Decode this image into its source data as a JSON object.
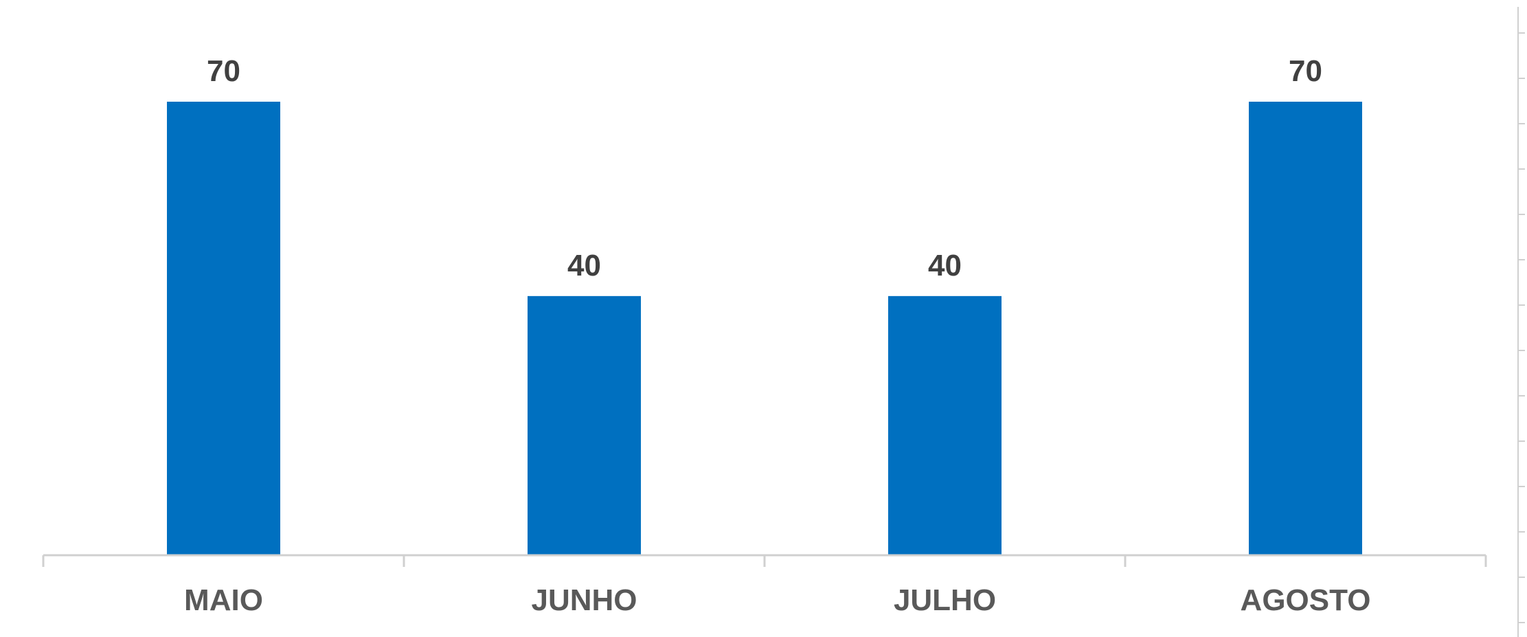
{
  "chart_data": {
    "type": "bar",
    "categories": [
      "MAIO",
      "JUNHO",
      "JULHO",
      "AGOSTO"
    ],
    "values": [
      70,
      40,
      40,
      70
    ],
    "data_labels": [
      "70",
      "40",
      "40",
      "70"
    ],
    "title": "",
    "xlabel": "",
    "ylabel": "",
    "ylim": [
      0,
      80
    ],
    "grid": false,
    "legend": "none",
    "bar_color": "#0070C0"
  }
}
